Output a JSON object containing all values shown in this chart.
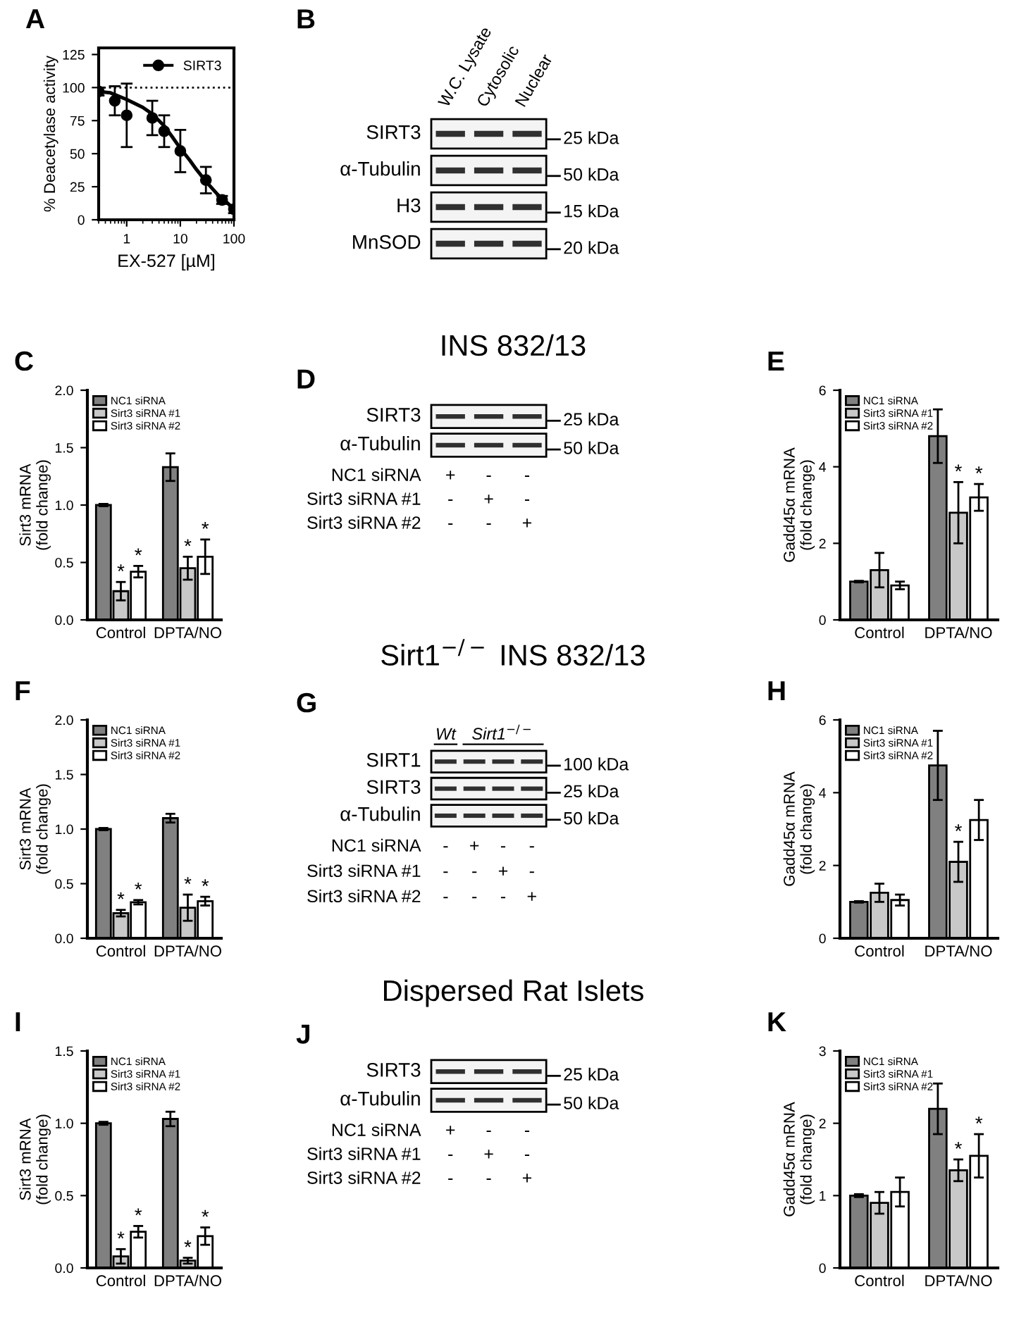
{
  "chart_data": [
    {
      "type": "scatter",
      "title": "A",
      "xlabel": "EX-527 [µM]",
      "ylabel": "% Deacetylase activity",
      "log": "x",
      "xlim": [
        0.3,
        100
      ],
      "xticks": [
        1,
        10,
        100
      ],
      "ylim": [
        0,
        130
      ],
      "yticks": [
        0,
        25,
        50,
        75,
        100,
        125
      ],
      "legend": "top right",
      "ref_lines": [
        {
          "axis": "y",
          "value": 100,
          "line_style": "dotted",
          "color": "#000000"
        }
      ],
      "series": [
        {
          "name": "SIRT3",
          "type": "scatter",
          "marker": "circle",
          "color": "#000000",
          "x": [
            0.3,
            0.6,
            1,
            3,
            5,
            10,
            30,
            60,
            100
          ],
          "values": [
            97,
            90,
            79,
            77,
            67,
            52,
            30,
            15,
            8
          ],
          "errors": [
            3,
            11,
            24,
            13,
            12,
            16,
            10,
            3,
            3
          ]
        },
        {
          "type": "line",
          "color": "#000000",
          "x": [
            0.3,
            0.5,
            1,
            2,
            3,
            5,
            7,
            10,
            15,
            20,
            30,
            50,
            70,
            100
          ],
          "values": [
            97,
            96,
            91,
            85,
            80,
            71,
            63,
            54,
            45,
            38,
            29,
            19,
            14,
            8
          ]
        }
      ]
    },
    {
      "type": "other",
      "title": "B",
      "categories": [
        "W.C. Lysate",
        "Cytosolic",
        "Nuclear"
      ],
      "y_categories": [
        "SIRT3",
        "α-Tubulin",
        "H3",
        "MnSOD"
      ],
      "y2_categories": [
        "25 kDa",
        "50 kDa",
        "15 kDa",
        "20 kDa"
      ]
    },
    {
      "type": "other",
      "title": "INS 832/13"
    },
    {
      "type": "bar",
      "title": "C",
      "ylabel": "Sirt3 mRNA\n(fold change)",
      "categories": [
        "Control",
        "DPTA/NO"
      ],
      "ylim": [
        0,
        2
      ],
      "yticks": [
        {
          "value": 0,
          "label": "0.0"
        },
        {
          "value": 0.5,
          "label": "0.5"
        },
        {
          "value": 1,
          "label": "1.0"
        },
        {
          "value": 1.5,
          "label": "1.5"
        },
        {
          "value": 2,
          "label": "2.0"
        }
      ],
      "legend": "top left",
      "series": [
        {
          "name": "NC1 siRNA",
          "color": "#808080",
          "values": [
            1.0,
            1.33
          ],
          "errors": [
            0.01,
            0.12
          ]
        },
        {
          "name": "Sirt3 siRNA #1",
          "color": "#c8c8c8",
          "values": [
            0.25,
            0.45
          ],
          "errors": [
            0.08,
            0.1
          ],
          "value_labels": [
            "*",
            "*"
          ]
        },
        {
          "name": "Sirt3 siRNA #2",
          "color": "#ffffff",
          "values": [
            0.42,
            0.55
          ],
          "errors": [
            0.05,
            0.15
          ],
          "value_labels": [
            "*",
            "*"
          ]
        }
      ]
    },
    {
      "type": "other",
      "title": "D",
      "y_categories": [
        "SIRT3",
        "α-Tubulin"
      ],
      "y2_categories": [
        "25 kDa",
        "50 kDa"
      ],
      "annotations": [
        "NC1 siRNA",
        "Sirt3 siRNA #1",
        "Sirt3 siRNA #2"
      ],
      "cell_labels": [
        [
          "+",
          "-",
          "-"
        ],
        [
          "-",
          "+",
          "-"
        ],
        [
          "-",
          "-",
          "+"
        ]
      ]
    },
    {
      "type": "bar",
      "title": "E",
      "ylabel": "Gadd45α mRNA\n(fold change)",
      "categories": [
        "Control",
        "DPTA/NO"
      ],
      "ylim": [
        0,
        6
      ],
      "yticks": [
        0,
        2,
        4,
        6
      ],
      "legend": "top left",
      "series": [
        {
          "name": "NC1 siRNA",
          "color": "#808080",
          "values": [
            1.0,
            4.8
          ],
          "errors": [
            0.02,
            0.7
          ]
        },
        {
          "name": "Sirt3 siRNA #1",
          "color": "#c8c8c8",
          "values": [
            1.3,
            2.8
          ],
          "errors": [
            0.45,
            0.8
          ],
          "value_labels": [
            null,
            "*"
          ]
        },
        {
          "name": "Sirt3 siRNA #2",
          "color": "#ffffff",
          "values": [
            0.9,
            3.2
          ],
          "errors": [
            0.1,
            0.35
          ],
          "value_labels": [
            null,
            "*"
          ]
        }
      ]
    },
    {
      "type": "other",
      "title": "Sirt1$^{−/−}$ INS 832/13"
    },
    {
      "type": "bar",
      "title": "F",
      "ylabel": "Sirt3 mRNA\n(fold change)",
      "categories": [
        "Control",
        "DPTA/NO"
      ],
      "ylim": [
        0,
        2
      ],
      "yticks": [
        {
          "value": 0,
          "label": "0.0"
        },
        {
          "value": 0.5,
          "label": "0.5"
        },
        {
          "value": 1,
          "label": "1.0"
        },
        {
          "value": 1.5,
          "label": "1.5"
        },
        {
          "value": 2,
          "label": "2.0"
        }
      ],
      "legend": "top left",
      "series": [
        {
          "name": "NC1 siRNA",
          "color": "#808080",
          "values": [
            1.0,
            1.1
          ],
          "errors": [
            0.01,
            0.04
          ]
        },
        {
          "name": "Sirt3 siRNA #1",
          "color": "#c8c8c8",
          "values": [
            0.23,
            0.28
          ],
          "errors": [
            0.03,
            0.12
          ],
          "value_labels": [
            "*",
            "*"
          ]
        },
        {
          "name": "Sirt3 siRNA #2",
          "color": "#ffffff",
          "values": [
            0.33,
            0.34
          ],
          "errors": [
            0.02,
            0.04
          ],
          "value_labels": [
            "*",
            "*"
          ]
        }
      ]
    },
    {
      "type": "other",
      "title": "G",
      "categories": [
        "Wt",
        "Sirt1$^{−/−}$",
        null,
        null
      ],
      "y_categories": [
        "SIRT1",
        "SIRT3",
        "α-Tubulin"
      ],
      "y2_categories": [
        "100 kDa",
        "25 kDa",
        "50 kDa"
      ],
      "annotations": [
        "NC1 siRNA",
        "Sirt3 siRNA #1",
        "Sirt3 siRNA #2"
      ],
      "cell_labels": [
        [
          "-",
          "+",
          "-",
          "-"
        ],
        [
          "-",
          "-",
          "+",
          "-"
        ],
        [
          "-",
          "-",
          "-",
          "+"
        ]
      ]
    },
    {
      "type": "bar",
      "title": "H",
      "ylabel": "Gadd45α mRNA\n(fold change)",
      "categories": [
        "Control",
        "DPTA/NO"
      ],
      "ylim": [
        0,
        6
      ],
      "yticks": [
        0,
        2,
        4,
        6
      ],
      "legend": "top left",
      "series": [
        {
          "name": "NC1 siRNA",
          "color": "#808080",
          "values": [
            1.0,
            4.75
          ],
          "errors": [
            0.02,
            0.95
          ]
        },
        {
          "name": "Sirt3 siRNA #1",
          "color": "#c8c8c8",
          "values": [
            1.25,
            2.1
          ],
          "errors": [
            0.25,
            0.55
          ],
          "value_labels": [
            null,
            "*"
          ]
        },
        {
          "name": "Sirt3 siRNA #2",
          "color": "#ffffff",
          "values": [
            1.05,
            3.25
          ],
          "errors": [
            0.15,
            0.55
          ]
        }
      ]
    },
    {
      "type": "other",
      "title": "Dispersed Rat Islets"
    },
    {
      "type": "bar",
      "title": "I",
      "ylabel": "Sirt3 mRNA\n(fold change)",
      "categories": [
        "Control",
        "DPTA/NO"
      ],
      "ylim": [
        0,
        1.5
      ],
      "yticks": [
        {
          "value": 0,
          "label": "0.0"
        },
        {
          "value": 0.5,
          "label": "0.5"
        },
        {
          "value": 1,
          "label": "1.0"
        },
        {
          "value": 1.5,
          "label": "1.5"
        }
      ],
      "legend": "top left",
      "series": [
        {
          "name": "NC1 siRNA",
          "color": "#808080",
          "values": [
            1.0,
            1.03
          ],
          "errors": [
            0.01,
            0.05
          ]
        },
        {
          "name": "Sirt3 siRNA #1",
          "color": "#c8c8c8",
          "values": [
            0.08,
            0.05
          ],
          "errors": [
            0.05,
            0.02
          ],
          "value_labels": [
            "*",
            "*"
          ]
        },
        {
          "name": "Sirt3 siRNA #2",
          "color": "#ffffff",
          "values": [
            0.25,
            0.22
          ],
          "errors": [
            0.04,
            0.06
          ],
          "value_labels": [
            "*",
            "*"
          ]
        }
      ]
    },
    {
      "type": "other",
      "title": "J",
      "y_categories": [
        "SIRT3",
        "α-Tubulin"
      ],
      "y2_categories": [
        "25 kDa",
        "50 kDa"
      ],
      "annotations": [
        "NC1 siRNA",
        "Sirt3 siRNA #1",
        "Sirt3 siRNA #2"
      ],
      "cell_labels": [
        [
          "+",
          "-",
          "-"
        ],
        [
          "-",
          "+",
          "-"
        ],
        [
          "-",
          "-",
          "+"
        ]
      ]
    },
    {
      "type": "bar",
      "title": "K",
      "ylabel": "Gadd45α mRNA\n(fold change)",
      "categories": [
        "Control",
        "DPTA/NO"
      ],
      "ylim": [
        0,
        3
      ],
      "yticks": [
        0,
        1,
        2,
        3
      ],
      "legend": "top left",
      "series": [
        {
          "name": "NC1 siRNA",
          "color": "#808080",
          "values": [
            1.0,
            2.2
          ],
          "errors": [
            0.02,
            0.35
          ]
        },
        {
          "name": "Sirt3 siRNA #1",
          "color": "#c8c8c8",
          "values": [
            0.9,
            1.35
          ],
          "errors": [
            0.15,
            0.15
          ],
          "value_labels": [
            null,
            "*"
          ]
        },
        {
          "name": "Sirt3 siRNA #2",
          "color": "#ffffff",
          "values": [
            1.05,
            1.55
          ],
          "errors": [
            0.2,
            0.3
          ],
          "value_labels": [
            null,
            "*"
          ]
        }
      ]
    }
  ]
}
